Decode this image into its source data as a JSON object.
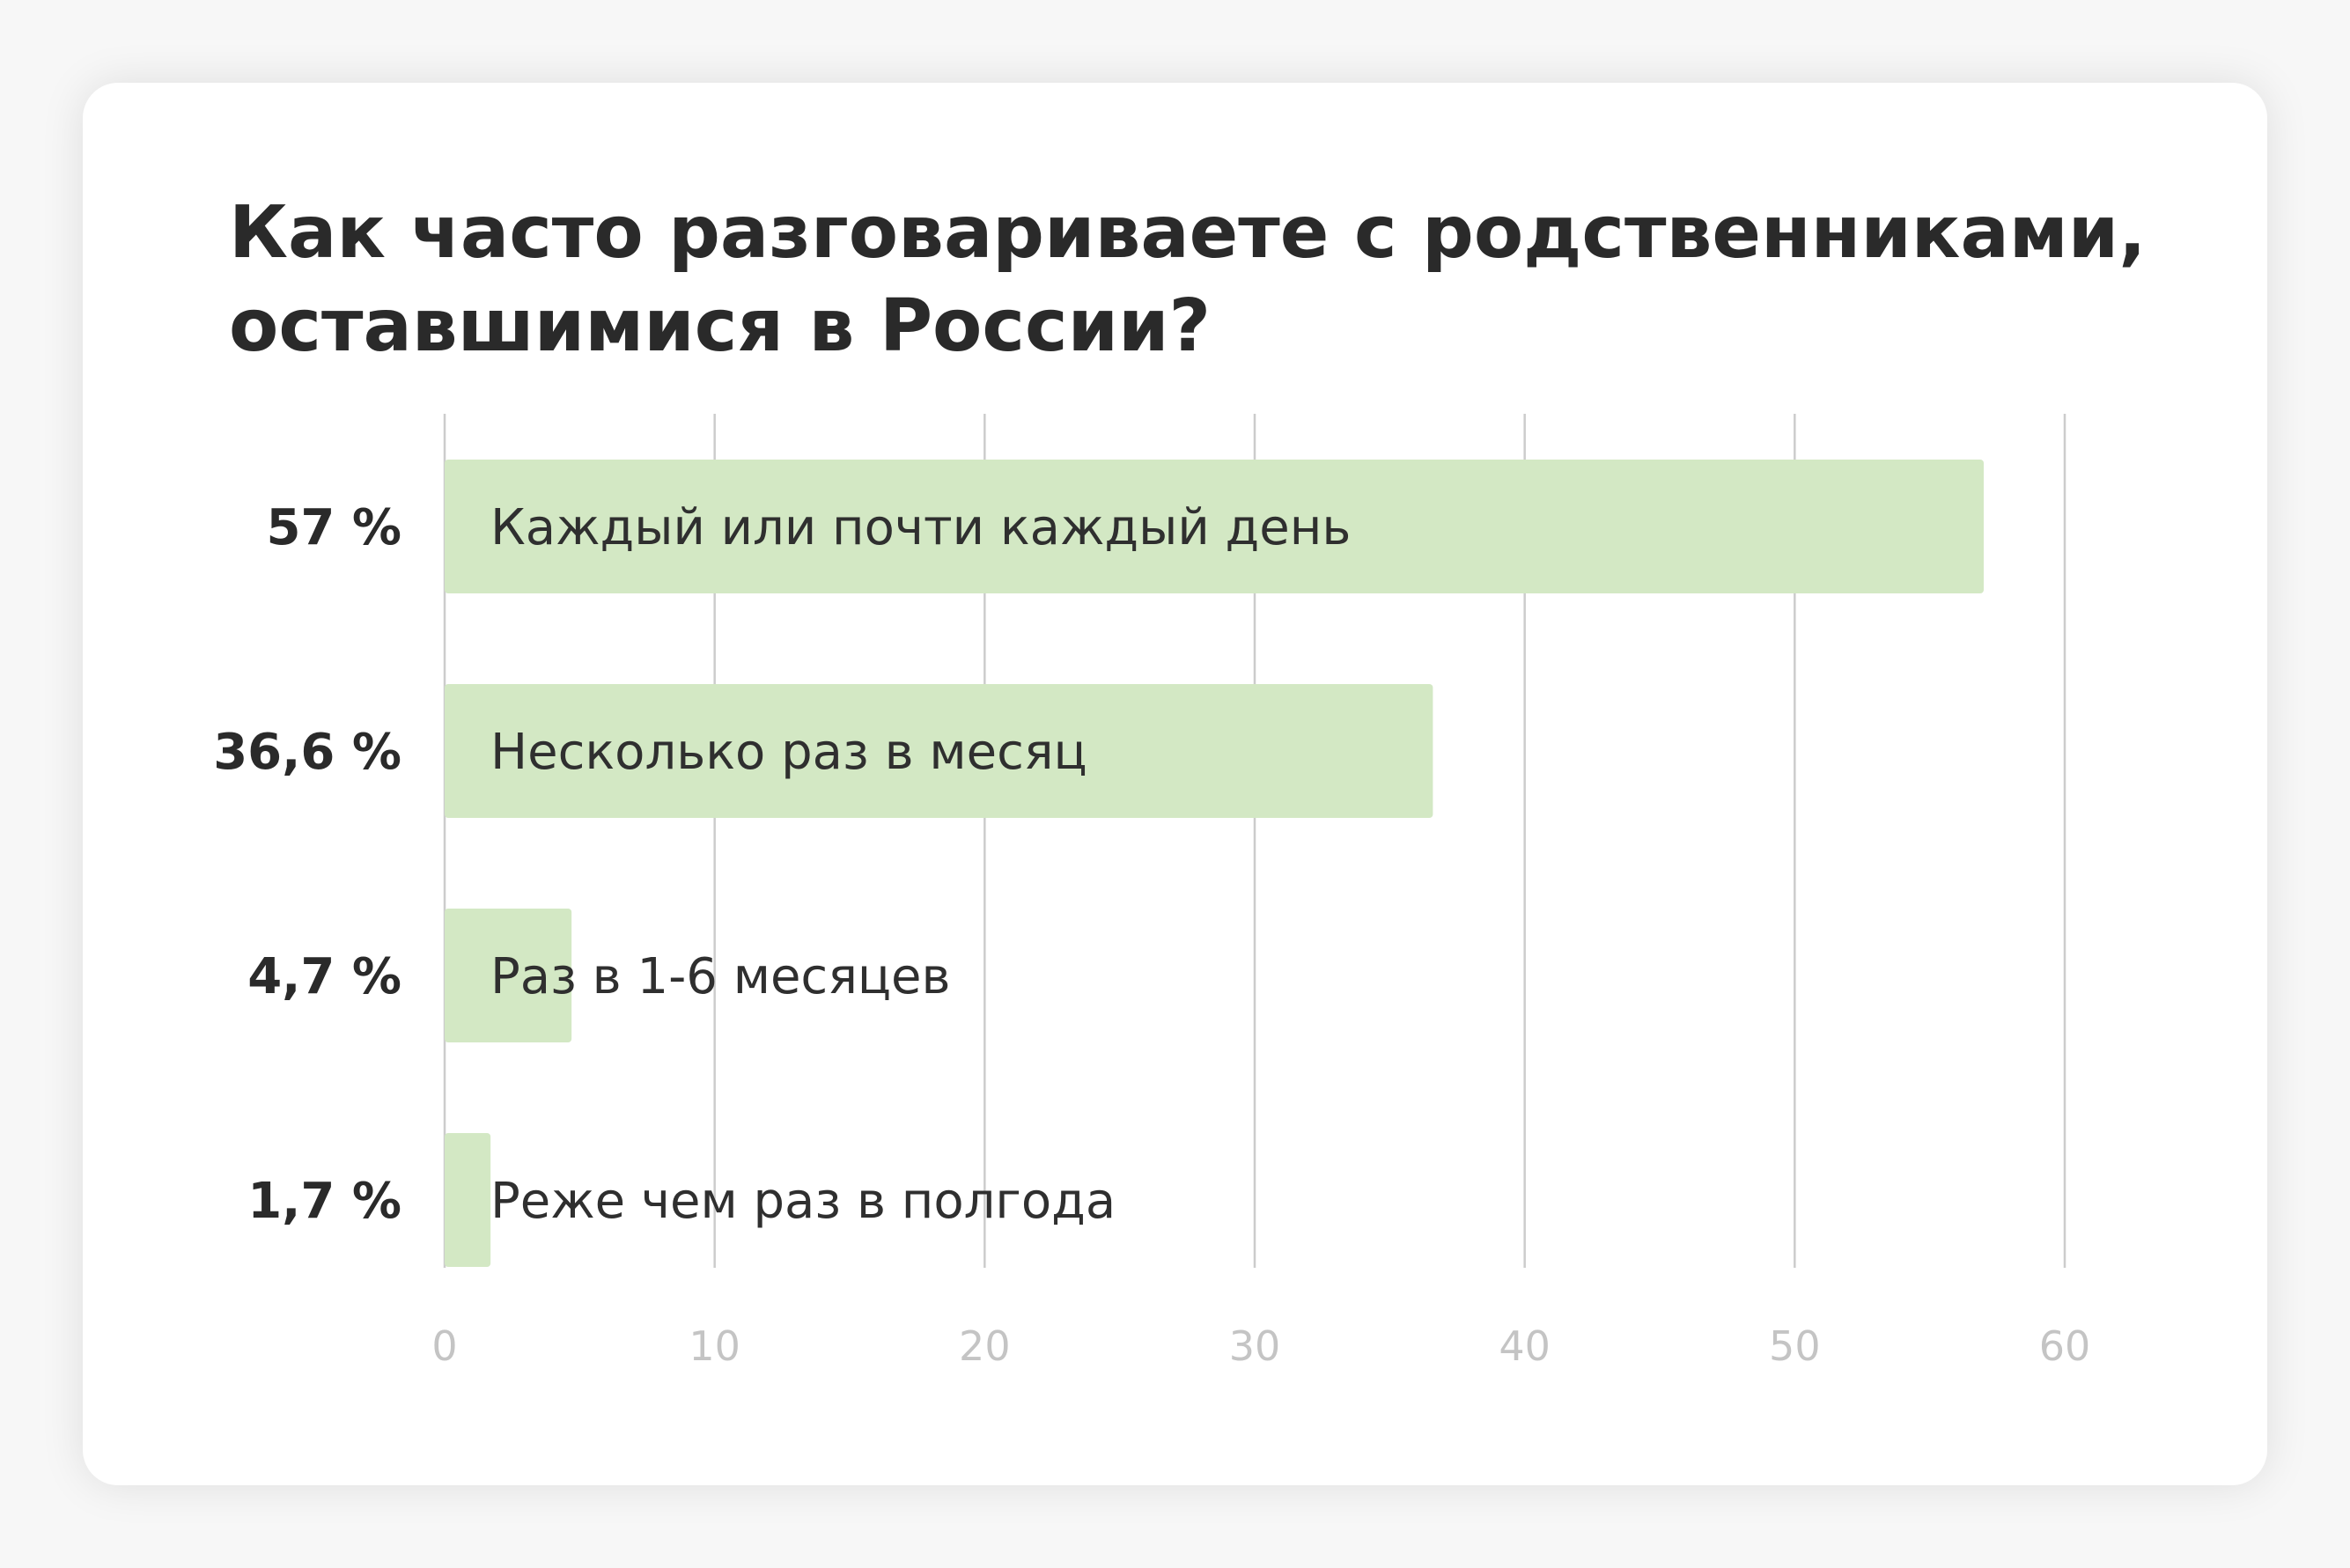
{
  "colors": {
    "bar": "#d3e8c4",
    "grid": "#cccccc",
    "axis_text": "#c4c4c4",
    "text": "#2a2a2a",
    "background": "#ffffff"
  },
  "chart_data": {
    "type": "bar",
    "orientation": "horizontal",
    "title": "Как часто разговариваете с родственниками,\nоставшимися в России?",
    "categories": [
      "Каждый или почти каждый день",
      "Несколько раз в месяц",
      "Раз в 1-6 месяцев",
      "Реже чем раз в полгода"
    ],
    "values": [
      57,
      36.6,
      4.7,
      1.7
    ],
    "value_labels": [
      "57 %",
      "36,6 %",
      "4,7 %",
      "1,7 %"
    ],
    "xlim": [
      0,
      60
    ],
    "xticks": [
      0,
      10,
      20,
      30,
      40,
      50,
      60
    ],
    "xtick_labels": [
      "0",
      "10",
      "20",
      "30",
      "40",
      "50",
      "60"
    ],
    "grid": true,
    "legend": "none"
  }
}
